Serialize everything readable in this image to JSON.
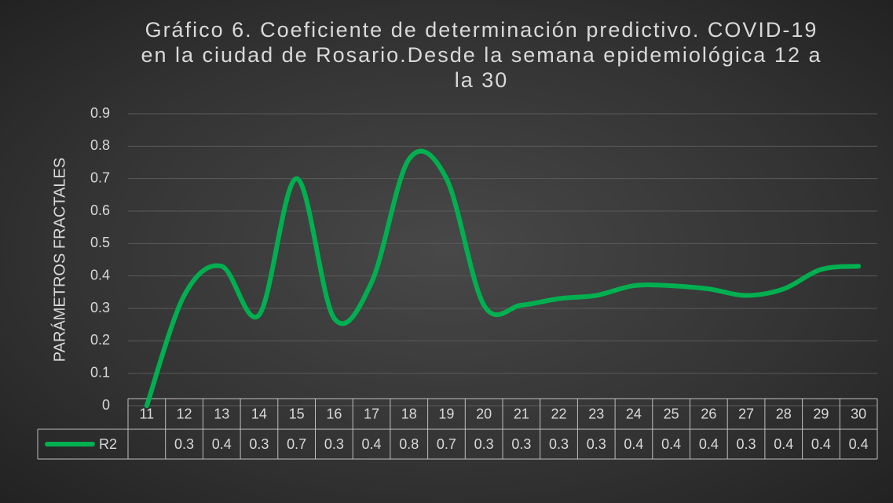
{
  "chart_data": {
    "type": "line",
    "title": "Gráfico 6. Coeficiente de determinación predictivo. COVID-19 en la ciudad de Rosario.Desde la semana epidemiológica 12 a la 30",
    "y_label": "PARÁMETROS FRACTALES",
    "categories": [
      "11",
      "12",
      "13",
      "14",
      "15",
      "16",
      "17",
      "18",
      "19",
      "20",
      "21",
      "22",
      "23",
      "24",
      "25",
      "26",
      "27",
      "28",
      "29",
      "30"
    ],
    "series": [
      {
        "name": "R2",
        "color": "#00b050",
        "values": [
          0,
          0.34,
          0.43,
          0.28,
          0.7,
          0.27,
          0.38,
          0.76,
          0.7,
          0.31,
          0.31,
          0.33,
          0.34,
          0.37,
          0.37,
          0.36,
          0.34,
          0.36,
          0.42,
          0.43
        ],
        "value_labels": [
          null,
          "0.3",
          "0.4",
          "0.3",
          "0.7",
          "0.3",
          "0.4",
          "0.8",
          "0.7",
          "0.3",
          "0.3",
          "0.3",
          "0.3",
          "0.4",
          "0.4",
          "0.4",
          "0.3",
          "0.4",
          "0.4",
          "0.4"
        ]
      }
    ],
    "ylim": [
      0,
      0.9
    ],
    "yticks": [
      0,
      0.1,
      0.2,
      0.3,
      0.4,
      0.5,
      0.6,
      0.7,
      0.8,
      0.9
    ],
    "grid": true
  }
}
